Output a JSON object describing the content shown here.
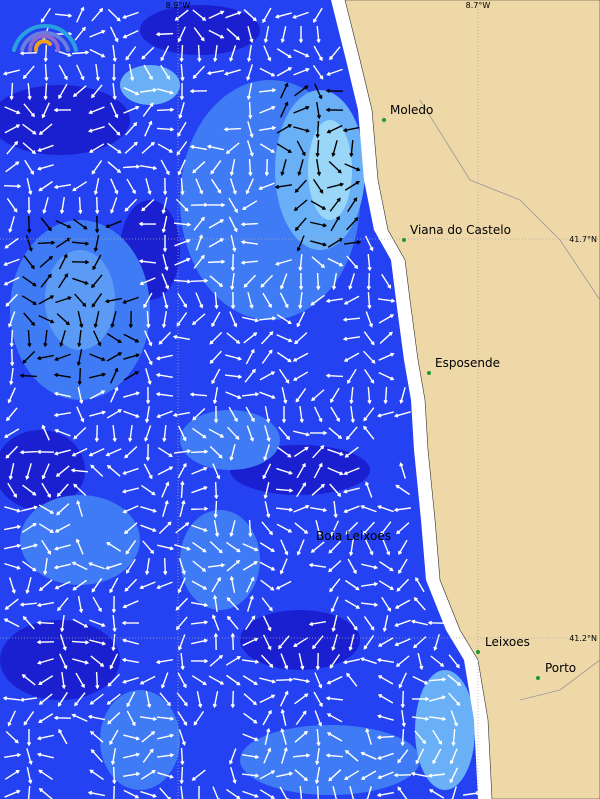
{
  "map": {
    "graticule": {
      "lon": [
        "8.9°W",
        "8.7°W"
      ],
      "lat": [
        "41.7°N",
        "41.2°N"
      ]
    },
    "places": [
      {
        "label": "Moledo"
      },
      {
        "label": "Viana do Castelo"
      },
      {
        "label": "Esposende"
      },
      {
        "label": "Boia Leixoes"
      },
      {
        "label": "Leixoes"
      },
      {
        "label": "Porto"
      }
    ]
  }
}
